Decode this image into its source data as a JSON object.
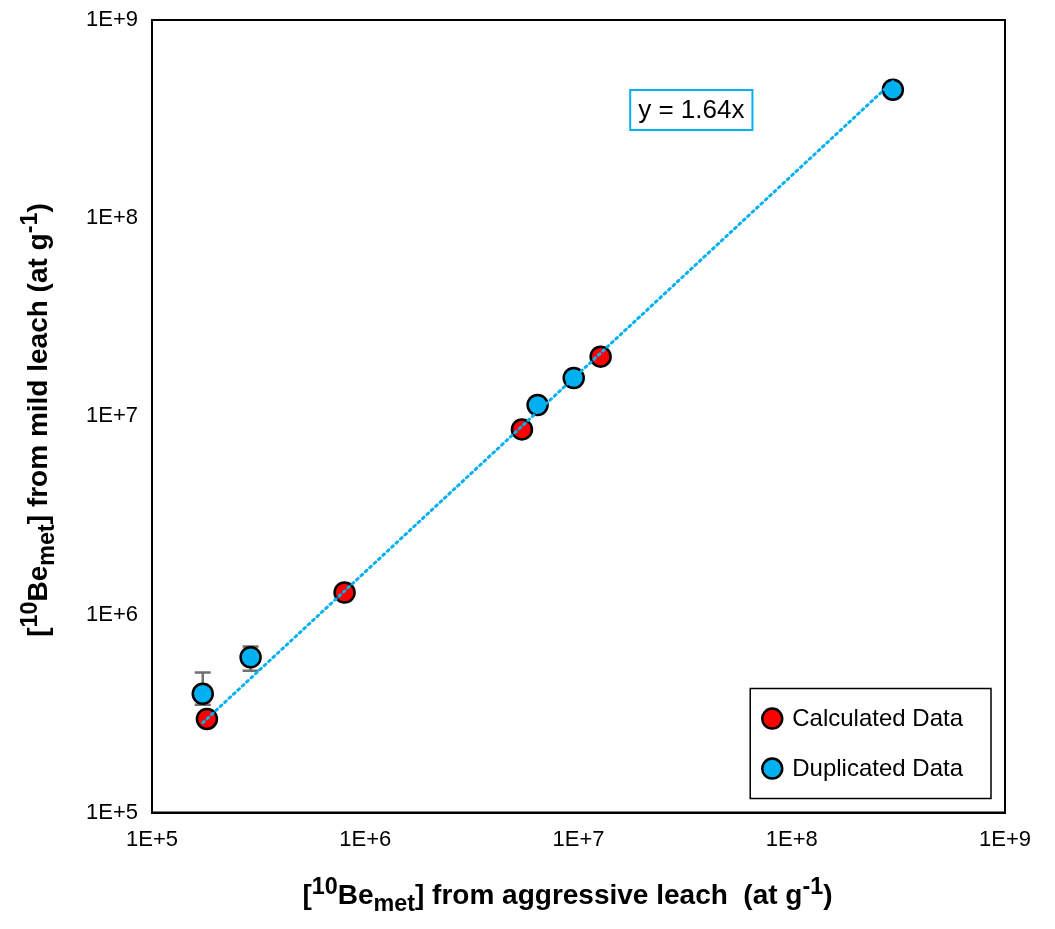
{
  "chart_data": {
    "type": "scatter",
    "xlabel": "[$^{10}$Be$_{met}$] from aggressive leach  (at g$^{-1}$)",
    "ylabel": "[$^{10}$Be$_{met}$] from mild leach (at g$^{-1}$)",
    "log": "xy",
    "xlim": [
      100000,
      1000000000
    ],
    "ylim": [
      100000,
      1000000000
    ],
    "xticks": [
      {
        "value": 100000,
        "label": "1E+5"
      },
      {
        "value": 1000000,
        "label": "1E+6"
      },
      {
        "value": 10000000,
        "label": "1E+7"
      },
      {
        "value": 100000000,
        "label": "1E+8"
      },
      {
        "value": 1000000000,
        "label": "1E+9"
      }
    ],
    "yticks": [
      {
        "value": 100000,
        "label": "1E+5"
      },
      {
        "value": 1000000,
        "label": "1E+6"
      },
      {
        "value": 10000000,
        "label": "1E+7"
      },
      {
        "value": 100000000,
        "label": "1E+8"
      },
      {
        "value": 1000000000,
        "label": "1E+9"
      }
    ],
    "grid": false,
    "legend": "bottom right",
    "marker": "circle",
    "annotations": [
      "y = 1.64x"
    ],
    "series": [
      {
        "type": "line",
        "line_style": "dotted",
        "marker": "none",
        "color": "#00b0f0",
        "x": [
          173000,
          298000000
        ],
        "values": [
          284000,
          489000000
        ]
      },
      {
        "name": "Calculated Data",
        "color": "#ff0000",
        "x": [
          181000,
          800000,
          5430000,
          12700000
        ],
        "values": [
          297000,
          1290000,
          8590000,
          20000000
        ]
      },
      {
        "name": "Duplicated Data",
        "color": "#00b0f0",
        "x": [
          173000,
          290000,
          6430000,
          9500000,
          298000000
        ],
        "values": [
          398000,
          608000,
          11400000,
          15600000,
          445000000
        ],
        "errors": [
          [
            350000,
            510000
          ],
          [
            520000,
            690000
          ],
          null,
          null,
          null
        ]
      }
    ]
  }
}
